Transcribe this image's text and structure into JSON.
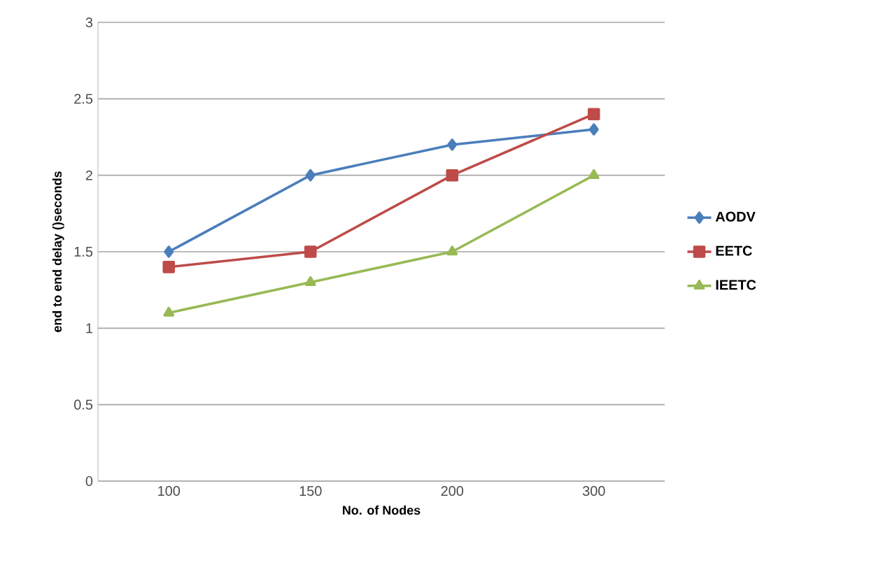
{
  "chart_data": {
    "type": "line",
    "xlabel": "No. of Nodes",
    "ylabel": "end to end delay ()seconds",
    "categories": [
      "100",
      "150",
      "200",
      "300"
    ],
    "series": [
      {
        "name": "AODV",
        "color": "#4a7ebb",
        "marker": "diamond",
        "values": [
          1.5,
          2,
          2.2,
          2.3
        ]
      },
      {
        "name": "EETC",
        "color": "#be4b48",
        "marker": "square",
        "values": [
          1.4,
          1.5,
          2,
          2.4
        ]
      },
      {
        "name": "IEETC",
        "color": "#98b954",
        "marker": "triangle",
        "values": [
          1.1,
          1.3,
          1.5,
          2
        ]
      }
    ],
    "ylim": [
      0,
      3
    ],
    "yticks": [
      0,
      0.5,
      1,
      1.5,
      2,
      2.5,
      3
    ],
    "grid": "y",
    "legend": "right",
    "line_style": "solid"
  }
}
